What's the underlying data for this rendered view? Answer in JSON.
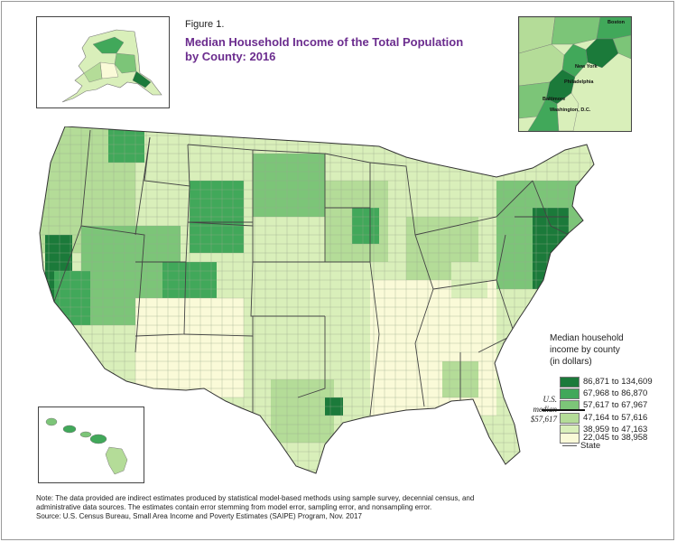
{
  "figure_label": "Figure 1.",
  "title_line1": "Median Household Income of the Total Population",
  "title_line2": "by County: 2016",
  "legend": {
    "title_line1": "Median household",
    "title_line2": "income by county",
    "title_line3": "(in dollars)",
    "classes": [
      {
        "label": "86,871 to 134,609",
        "color": "#1b7a3a"
      },
      {
        "label": "67,968 to 86,870",
        "color": "#41a85a"
      },
      {
        "label": "57,617 to 67,967",
        "color": "#7cc578"
      },
      {
        "label": "47,164 to 57,616",
        "color": "#b4dc98"
      },
      {
        "label": "38,959 to 47,163",
        "color": "#d9efba"
      },
      {
        "label": "22,045 to 38,958",
        "color": "#fafad8"
      }
    ],
    "median_line1": "U.S.",
    "median_line2": "median",
    "median_line3": "$57,617",
    "state_label": "State"
  },
  "cities": [
    "Boston",
    "New York",
    "Philadelphia",
    "Baltimore",
    "Washington, D.C."
  ],
  "note_line1": "Note: The data provided are indirect estimates produced by statistical model-based methods using sample survey, decennial census, and",
  "note_line2": "administrative data sources. The estimates contain error stemming from model error, sampling error, and nonsampling error.",
  "source": "Source: U.S. Census Bureau, Small Area Income and Poverty Estimates (SAIPE) Program, Nov. 2017"
}
